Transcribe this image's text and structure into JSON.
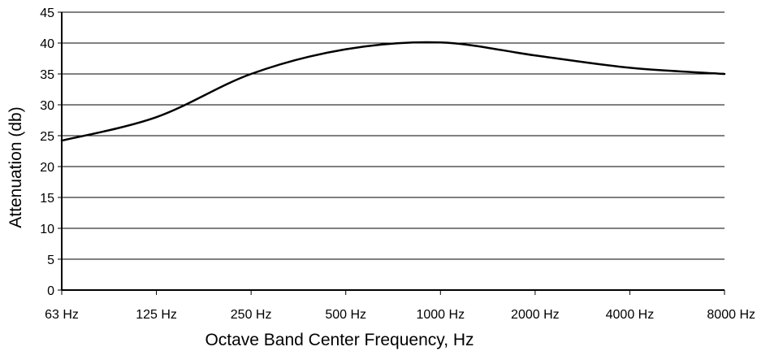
{
  "chart_data": {
    "type": "line",
    "title": "",
    "xlabel": "Octave Band Center Frequency, Hz",
    "ylabel": "Attenuation (db)",
    "categories": [
      "63 Hz",
      "125 Hz",
      "250 Hz",
      "500 Hz",
      "1000 Hz",
      "2000 Hz",
      "4000 Hz",
      "8000 Hz"
    ],
    "series": [
      {
        "values": [
          24.2,
          28.0,
          35.0,
          39.0,
          40.1,
          38.0,
          36.0,
          35.0
        ],
        "color": "#000000"
      }
    ],
    "ylim": [
      0,
      45
    ],
    "yticks": [
      0,
      5,
      10,
      15,
      20,
      25,
      30,
      35,
      40,
      45
    ],
    "grid": true,
    "legend": "none"
  }
}
